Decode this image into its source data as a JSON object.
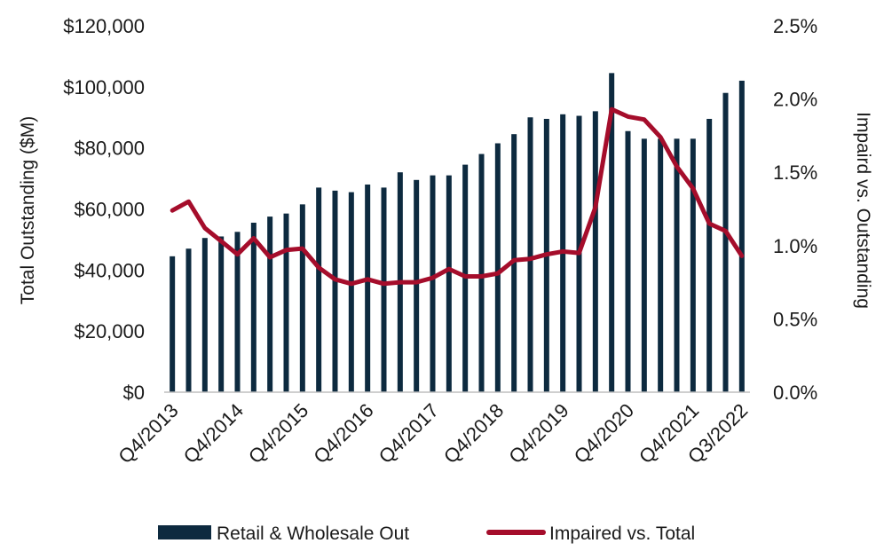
{
  "chart_data": {
    "type": "bar",
    "x": [
      "Q4/2013",
      "Q1/2014",
      "Q2/2014",
      "Q3/2014",
      "Q4/2014",
      "Q1/2015",
      "Q2/2015",
      "Q3/2015",
      "Q4/2015",
      "Q1/2016",
      "Q2/2016",
      "Q3/2016",
      "Q4/2016",
      "Q1/2017",
      "Q2/2017",
      "Q3/2017",
      "Q4/2017",
      "Q1/2018",
      "Q2/2018",
      "Q3/2018",
      "Q4/2018",
      "Q1/2019",
      "Q2/2019",
      "Q3/2019",
      "Q4/2019",
      "Q1/2020",
      "Q2/2020",
      "Q3/2020",
      "Q4/2020",
      "Q1/2021",
      "Q2/2021",
      "Q3/2021",
      "Q4/2021",
      "Q1/2022",
      "Q2/2022",
      "Q3/2022"
    ],
    "x_tick_labels": [
      "Q4/2013",
      "Q4/2014",
      "Q4/2015",
      "Q4/2016",
      "Q4/2017",
      "Q4/2018",
      "Q4/2019",
      "Q4/2020",
      "Q4/2021",
      "Q3/2022"
    ],
    "series": [
      {
        "name": "Retail & Wholesale Out",
        "type": "bar",
        "axis": "left",
        "color": "#0d2a3f",
        "values": [
          44500,
          47000,
          50500,
          51000,
          52500,
          55500,
          57500,
          58500,
          61500,
          67000,
          66000,
          65500,
          68000,
          67000,
          72000,
          69500,
          71000,
          71000,
          74500,
          78000,
          81500,
          84500,
          90000,
          89500,
          91000,
          90500,
          92000,
          104500,
          85500,
          83000,
          83000,
          83000,
          83000,
          89500,
          98000,
          102000
        ]
      },
      {
        "name": "Impaired vs. Total",
        "type": "line",
        "axis": "right",
        "color": "#a50d2b",
        "values": [
          1.24,
          1.3,
          1.12,
          1.03,
          0.94,
          1.05,
          0.92,
          0.97,
          0.98,
          0.85,
          0.77,
          0.74,
          0.77,
          0.74,
          0.75,
          0.75,
          0.78,
          0.84,
          0.79,
          0.79,
          0.81,
          0.9,
          0.91,
          0.94,
          0.96,
          0.95,
          1.26,
          1.93,
          1.88,
          1.86,
          1.74,
          1.54,
          1.39,
          1.15,
          1.1,
          0.93
        ]
      }
    ],
    "left_axis": {
      "title": "Total Outstanding ($M)",
      "min": 0,
      "max": 120000,
      "ticks": [
        0,
        20000,
        40000,
        60000,
        80000,
        100000,
        120000
      ],
      "tick_labels": [
        "$0",
        "$20,000",
        "$40,000",
        "$60,000",
        "$80,000",
        "$100,000",
        "$120,000"
      ]
    },
    "right_axis": {
      "title": "Impaird vs. Outstanding",
      "min": 0,
      "max": 2.5,
      "ticks": [
        0,
        0.5,
        1.0,
        1.5,
        2.0,
        2.5
      ],
      "tick_labels": [
        "0.0%",
        "0.5%",
        "1.0%",
        "1.5%",
        "2.0%",
        "2.5%"
      ]
    },
    "grid": false,
    "legend_position": "bottom"
  }
}
